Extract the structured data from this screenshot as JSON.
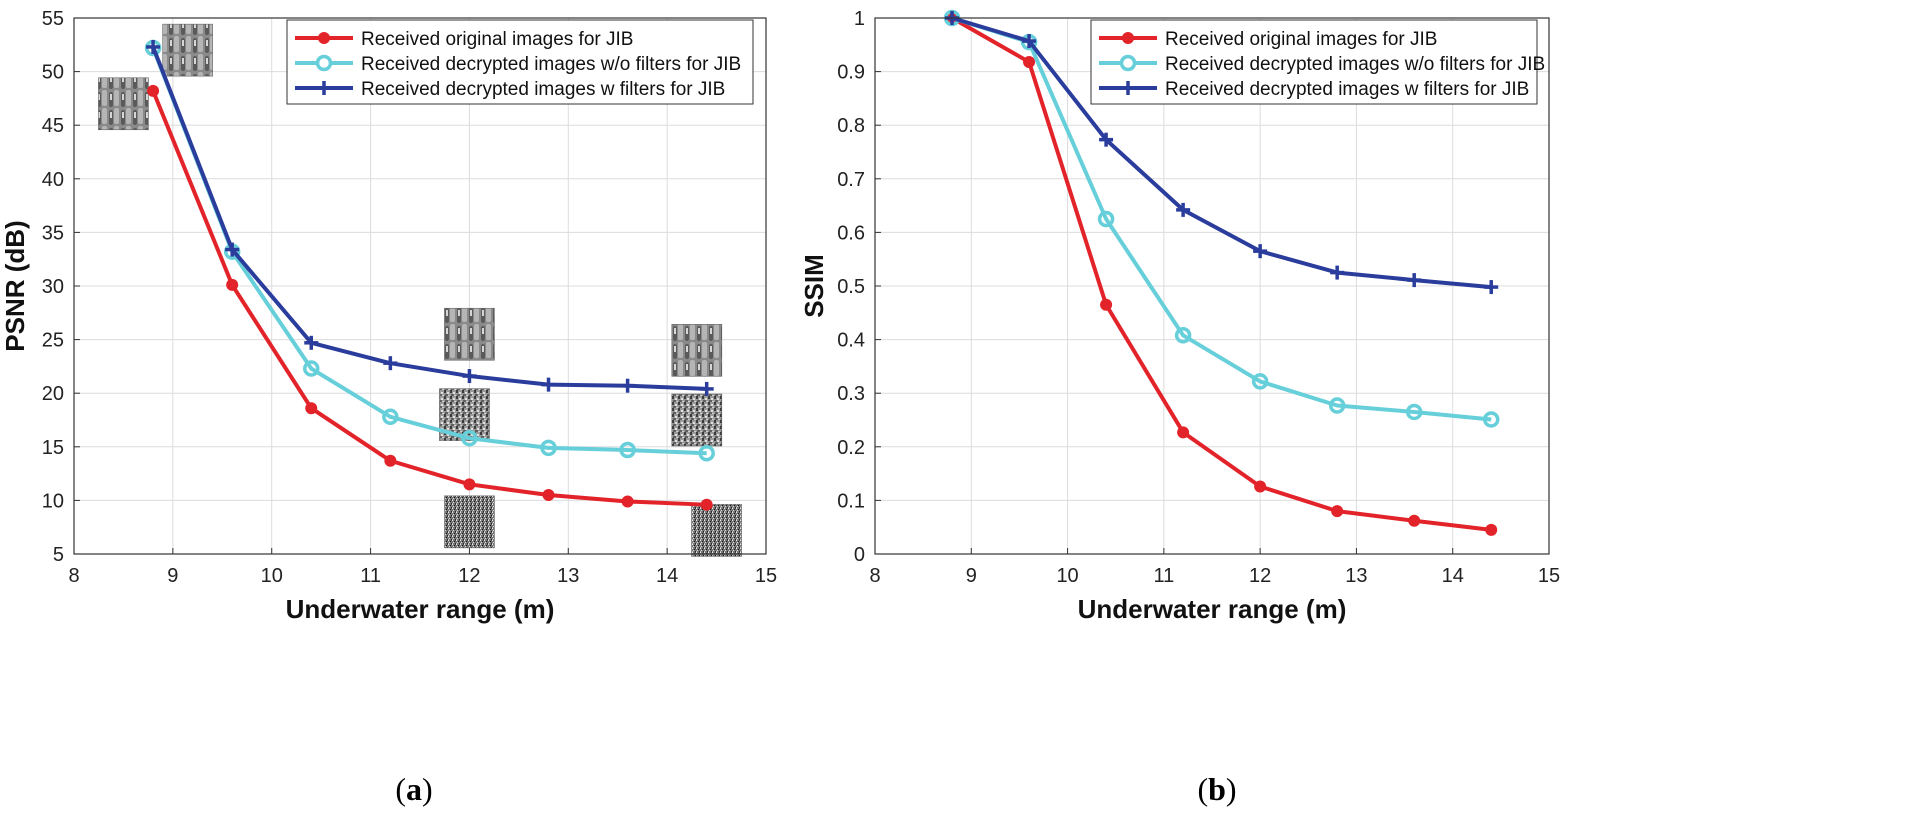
{
  "chart_data": [
    {
      "type": "line",
      "panel": "a",
      "caption_letter": "a",
      "xlabel": "Underwater range (m)",
      "ylabel": "PSNR (dB)",
      "xlim": [
        8,
        15
      ],
      "ylim": [
        5,
        55
      ],
      "xticks": [
        8,
        9,
        10,
        11,
        12,
        13,
        14,
        15
      ],
      "yticks": [
        5,
        10,
        15,
        20,
        25,
        30,
        35,
        40,
        45,
        50,
        55
      ],
      "grid": true,
      "legend_position": "top-right",
      "x": [
        8.8,
        9.6,
        10.4,
        11.2,
        12.0,
        12.8,
        13.6,
        14.4
      ],
      "series": [
        {
          "name": "Received original images for JIB",
          "color": "#e3232a",
          "marker": "circle-filled",
          "values": [
            48.2,
            30.1,
            18.6,
            13.7,
            11.5,
            10.5,
            9.9,
            9.6
          ]
        },
        {
          "name": "Received decrypted images w/o filters for JIB",
          "color": "#66cfd9",
          "marker": "circle-open",
          "values": [
            52.2,
            33.2,
            22.3,
            17.8,
            15.8,
            14.9,
            14.7,
            14.4
          ]
        },
        {
          "name": "Received decrypted images w filters for JIB",
          "color": "#2b3d9c",
          "marker": "plus",
          "values": [
            52.3,
            33.4,
            24.7,
            22.8,
            21.6,
            20.8,
            20.7,
            20.4
          ]
        }
      ],
      "inset_thumbnails": [
        {
          "kind": "original",
          "x_data": 8.5,
          "y_data": 47
        },
        {
          "kind": "original",
          "x_data": 9.15,
          "y_data": 52
        },
        {
          "kind": "original",
          "x_data": 12.0,
          "y_data": 25.5
        },
        {
          "kind": "encrypted-partial",
          "x_data": 11.95,
          "y_data": 18
        },
        {
          "kind": "noise",
          "x_data": 12.0,
          "y_data": 8
        },
        {
          "kind": "original",
          "x_data": 14.3,
          "y_data": 24
        },
        {
          "kind": "encrypted-partial",
          "x_data": 14.3,
          "y_data": 17.5
        },
        {
          "kind": "noise",
          "x_data": 14.5,
          "y_data": 7.2
        }
      ]
    },
    {
      "type": "line",
      "panel": "b",
      "caption_letter": "b",
      "xlabel": "Underwater range (m)",
      "ylabel": "SSIM",
      "xlim": [
        8,
        15
      ],
      "ylim": [
        0,
        1
      ],
      "xticks": [
        8,
        9,
        10,
        11,
        12,
        13,
        14,
        15
      ],
      "yticks": [
        0,
        0.1,
        0.2,
        0.3,
        0.4,
        0.5,
        0.6,
        0.7,
        0.8,
        0.9,
        1
      ],
      "grid": true,
      "legend_position": "top-right",
      "x": [
        8.8,
        9.6,
        10.4,
        11.2,
        12.0,
        12.8,
        13.6,
        14.4
      ],
      "series": [
        {
          "name": "Received original images for JIB",
          "color": "#e3232a",
          "marker": "circle-filled",
          "values": [
            1.0,
            0.918,
            0.465,
            0.227,
            0.126,
            0.08,
            0.062,
            0.045
          ]
        },
        {
          "name": "Received decrypted images w/o filters for JIB",
          "color": "#66cfd9",
          "marker": "circle-open",
          "values": [
            1.0,
            0.955,
            0.625,
            0.408,
            0.322,
            0.277,
            0.265,
            0.251
          ]
        },
        {
          "name": "Received decrypted images w filters for JIB",
          "color": "#2b3d9c",
          "marker": "plus",
          "values": [
            1.0,
            0.957,
            0.773,
            0.642,
            0.565,
            0.525,
            0.511,
            0.498
          ]
        }
      ]
    }
  ]
}
